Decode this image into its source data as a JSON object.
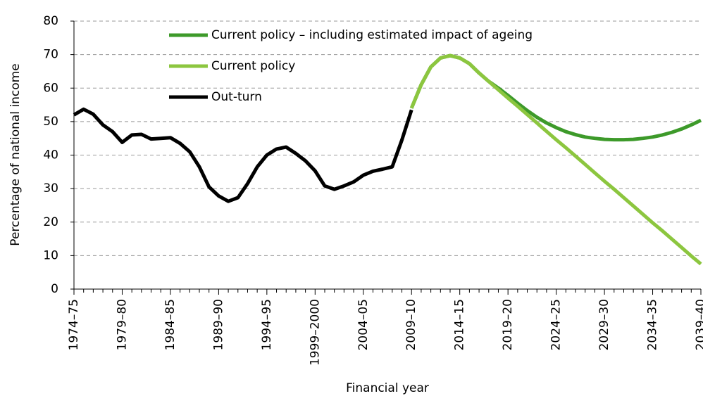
{
  "chart_data": {
    "type": "line",
    "x_label": "Financial year",
    "y_label": "Percentage of national income",
    "categories": [
      "1974–75",
      null,
      null,
      null,
      null,
      "1979–80",
      null,
      null,
      null,
      null,
      "1984–85",
      null,
      null,
      null,
      null,
      "1989–90",
      null,
      null,
      null,
      null,
      "1994–95",
      null,
      null,
      null,
      null,
      "1999–2000",
      null,
      null,
      null,
      null,
      "2004–05",
      null,
      null,
      null,
      null,
      "2009–10",
      null,
      null,
      null,
      null,
      "2014–15",
      null,
      null,
      null,
      null,
      "2019–20",
      null,
      null,
      null,
      null,
      "2024–25",
      null,
      null,
      null,
      null,
      "2029–30",
      null,
      null,
      null,
      null,
      "2034–35",
      null,
      null,
      null,
      null,
      "2039–40"
    ],
    "series": [
      {
        "name": "Current policy – including estimated impact of ageing",
        "color": "#3d9a2a",
        "values": [
          null,
          null,
          null,
          null,
          null,
          null,
          null,
          null,
          null,
          null,
          null,
          null,
          null,
          null,
          null,
          null,
          null,
          null,
          null,
          null,
          null,
          null,
          null,
          null,
          null,
          null,
          null,
          null,
          null,
          null,
          null,
          null,
          null,
          null,
          null,
          54,
          61,
          66.3,
          69,
          69.7,
          69,
          67.3,
          64.5,
          62,
          60,
          57.8,
          55.5,
          53.3,
          51.3,
          49.6,
          48.2,
          47,
          46.1,
          45.4,
          45,
          44.7,
          44.6,
          44.6,
          44.7,
          45,
          45.4,
          46,
          46.8,
          47.8,
          49,
          50.4
        ]
      },
      {
        "name": "Current policy",
        "color": "#8cc63f",
        "values": [
          null,
          null,
          null,
          null,
          null,
          null,
          null,
          null,
          null,
          null,
          null,
          null,
          null,
          null,
          null,
          null,
          null,
          null,
          null,
          null,
          null,
          null,
          null,
          null,
          null,
          null,
          null,
          null,
          null,
          null,
          null,
          null,
          null,
          null,
          null,
          54,
          61,
          66.3,
          69,
          69.7,
          69,
          67.3,
          64.5,
          62,
          59.5,
          57,
          54.6,
          52.1,
          49.6,
          47.1,
          44.6,
          42.2,
          39.7,
          37.2,
          34.7,
          32.2,
          29.8,
          27.3,
          24.8,
          22.3,
          19.8,
          17.4,
          14.9,
          12.4,
          9.9,
          7.5
        ]
      },
      {
        "name": "Out-turn",
        "color": "#000000",
        "values": [
          52,
          53.7,
          52.2,
          49,
          47,
          43.8,
          46,
          46.2,
          44.8,
          45,
          45.2,
          43.5,
          41,
          36.5,
          30.5,
          27.8,
          26.2,
          27.3,
          31.5,
          36.5,
          40,
          41.8,
          42.4,
          40.5,
          38.3,
          35.3,
          30.8,
          29.8,
          30.8,
          32,
          34,
          35.2,
          35.8,
          36.5,
          44.5,
          53.5,
          null,
          null,
          null,
          null,
          null,
          null,
          null,
          null,
          null,
          null,
          null,
          null,
          null,
          null,
          null,
          null,
          null,
          null,
          null,
          null,
          null,
          null,
          null,
          null,
          null,
          null,
          null,
          null,
          null,
          null
        ]
      }
    ],
    "ylim": [
      0,
      80
    ],
    "yticks": [
      0,
      10,
      20,
      30,
      40,
      50,
      60,
      70,
      80
    ],
    "grid": true,
    "legend": "top-left"
  }
}
